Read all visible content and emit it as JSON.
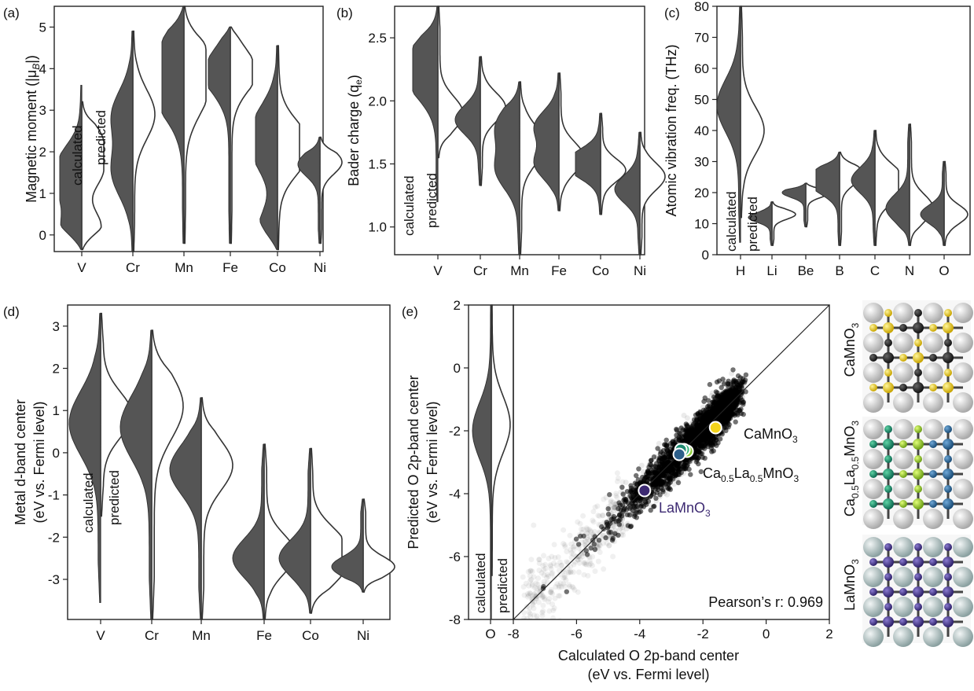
{
  "panels": {
    "a": {
      "label": "(a)",
      "ylabel": "Magnetic moment (|μ",
      "ylabel_sub": "B",
      "ylabel_tail": "|)",
      "ylim": [
        -0.4,
        5.5
      ],
      "yticks": [
        "0",
        "1",
        "2",
        "3",
        "4",
        "5"
      ],
      "ytick_values": [
        0,
        1,
        2,
        3,
        4,
        5
      ],
      "categories": [
        "V",
        "Cr",
        "Mn",
        "Fe",
        "Co",
        "Ni"
      ],
      "calc_label": "calculated",
      "pred_label": "predicted"
    },
    "b": {
      "label": "(b)",
      "ylabel": "Bader charge (q",
      "ylabel_sub": "e",
      "ylabel_tail": ")",
      "ylim": [
        0.78,
        2.75
      ],
      "yticks": [
        "1.0",
        "1.5",
        "2.0",
        "2.5"
      ],
      "ytick_values": [
        1.0,
        1.5,
        2.0,
        2.5
      ],
      "categories": [
        "V",
        "Cr",
        "Mn",
        "Fe",
        "Co",
        "Ni"
      ],
      "calc_label": "calculated",
      "pred_label": "predicted"
    },
    "c": {
      "label": "(c)",
      "ylabel": "Atomic vibration freq. (THz)",
      "ylim": [
        0,
        80
      ],
      "yticks": [
        "0",
        "10",
        "20",
        "30",
        "40",
        "50",
        "60",
        "70",
        "80"
      ],
      "ytick_values": [
        0,
        10,
        20,
        30,
        40,
        50,
        60,
        70,
        80
      ],
      "categories": [
        "H",
        "Li",
        "Be",
        "B",
        "C",
        "N",
        "O"
      ],
      "calc_label": "calculated",
      "pred_label": "predicted"
    },
    "d": {
      "label": "(d)",
      "ylabel_line1": "Metal d-band center",
      "ylabel_line2": "(eV vs. Fermi level)",
      "ylim": [
        -3.95,
        3.5
      ],
      "yticks": [
        "3",
        "2",
        "1",
        "0",
        "-1",
        "-2",
        "-3"
      ],
      "ytick_values": [
        3,
        2,
        1,
        0,
        -1,
        -2,
        -3
      ],
      "categories": [
        "V",
        "Cr",
        "Mn",
        "Fe",
        "Co",
        "Ni"
      ],
      "calc_label": "calculated",
      "pred_label": "predicted"
    },
    "e": {
      "label": "(e)",
      "ylabel_line1": "Predicted O 2p-band center",
      "ylabel_line2": "(eV vs. Fermi level)",
      "xlabel_line1": "Calculated O 2p-band center",
      "xlabel_line2": "(eV vs. Fermi level)",
      "ylim": [
        -8,
        2
      ],
      "xlim": [
        -8,
        2
      ],
      "yticks": [
        "2",
        "0",
        "-2",
        "-4",
        "-6",
        "-8"
      ],
      "ytick_values": [
        2,
        0,
        -2,
        -4,
        -6,
        -8
      ],
      "xticks": [
        "-8",
        "-6",
        "-4",
        "-2",
        "0",
        "2"
      ],
      "xtick_values": [
        -8,
        -6,
        -4,
        -2,
        0,
        2
      ],
      "violin_category": "O",
      "calc_label": "calculated",
      "pred_label": "predicted",
      "pearson": "Pearson’s r: 0.969",
      "annotations": {
        "camno3": "CaMnO",
        "camno3_sub": "3",
        "cala_a": "Ca",
        "cala_a_sub": "0.5",
        "cala_b": "La",
        "cala_b_sub": "0.5",
        "cala_c": "MnO",
        "cala_c_sub": "3",
        "lamno3": "LaMnO",
        "lamno3_sub": "3"
      },
      "structure_labels": {
        "camno3": "CaMnO",
        "camno3_sub": "3",
        "cala_a": "Ca",
        "cala_a_sub": "0.5",
        "cala_b": "La",
        "cala_b_sub": "0.5",
        "cala_c": "MnO",
        "cala_c_sub": "3",
        "lamno3": "LaMnO",
        "lamno3_sub": "3"
      }
    }
  },
  "colors": {
    "calc_fill": "#555555",
    "pred_fill": "#ffffff",
    "scatter": "#000000",
    "camno3": "#f2d31b",
    "lamno3": "#3d2a72",
    "mixed": [
      "#2d5f8a",
      "#1f8a70",
      "#34b37a",
      "#8fcf3c"
    ]
  },
  "chart_data": [
    {
      "type": "violin",
      "panel": "a",
      "ylabel": "Magnetic moment (|μB|)",
      "categories": [
        "V",
        "Cr",
        "Mn",
        "Fe",
        "Co",
        "Ni"
      ],
      "ylim": [
        -0.4,
        5.5
      ],
      "series": [
        {
          "name": "calculated",
          "ranges": [
            [
              -0.35,
              3.6
            ],
            [
              -0.4,
              4.9
            ],
            [
              -0.2,
              5.5
            ],
            [
              -0.2,
              5.0
            ],
            [
              -0.35,
              4.55
            ],
            [
              -0.2,
              2.35
            ]
          ],
          "modes": [
            [
              0.1,
              1.1,
              1.8
            ],
            [
              1.5,
              2.9
            ],
            [
              3.3,
              3.9,
              4.6
            ],
            [
              3.9,
              4.4
            ],
            [
              0.1,
              1.9,
              2.7
            ],
            [
              1.7
            ]
          ]
        },
        {
          "name": "predicted",
          "ranges": [
            [
              -0.35,
              3.2
            ],
            [
              -0.4,
              4.9
            ],
            [
              -0.2,
              5.5
            ],
            [
              -0.2,
              5.0
            ],
            [
              -0.35,
              4.55
            ],
            [
              -0.2,
              2.35
            ]
          ],
          "modes": [
            [
              0.2,
              1.5,
              2.3
            ],
            [
              2.9
            ],
            [
              3.4,
              4.3
            ],
            [
              4.0,
              4.4
            ],
            [
              1.9,
              2.3
            ],
            [
              1.75
            ]
          ]
        }
      ]
    },
    {
      "type": "violin",
      "panel": "b",
      "ylabel": "Bader charge (qe)",
      "categories": [
        "V",
        "Cr",
        "Mn",
        "Fe",
        "Co",
        "Ni"
      ],
      "ylim": [
        0.78,
        2.75
      ],
      "series": [
        {
          "name": "calculated",
          "ranges": [
            [
              1.2,
              2.75
            ],
            [
              1.33,
              2.35
            ],
            [
              0.78,
              2.15
            ],
            [
              1.13,
              2.22
            ],
            [
              1.1,
              1.9
            ],
            [
              0.78,
              1.75
            ]
          ],
          "modes": [
            [
              2.15,
              2.35
            ],
            [
              1.85
            ],
            [
              1.45,
              1.8
            ],
            [
              1.5,
              1.8
            ],
            [
              1.45,
              1.55
            ],
            [
              1.3
            ]
          ]
        },
        {
          "name": "predicted",
          "ranges": [
            [
              1.55,
              2.75
            ],
            [
              1.33,
              2.35
            ],
            [
              0.78,
              2.15
            ],
            [
              1.13,
              2.22
            ],
            [
              1.1,
              1.9
            ],
            [
              0.78,
              1.75
            ]
          ],
          "modes": [
            [
              1.9
            ],
            [
              1.95
            ],
            [
              1.65
            ],
            [
              1.55
            ],
            [
              1.45
            ],
            [
              1.4
            ]
          ]
        }
      ]
    },
    {
      "type": "violin",
      "panel": "c",
      "ylabel": "Atomic vibration freq. (THz)",
      "categories": [
        "H",
        "Li",
        "Be",
        "B",
        "C",
        "N",
        "O"
      ],
      "ylim": [
        0,
        80
      ],
      "series": [
        {
          "name": "calculated",
          "ranges": [
            [
              4,
              80
            ],
            [
              3,
              17
            ],
            [
              9,
              23
            ],
            [
              3,
              33
            ],
            [
              3,
              40
            ],
            [
              3,
              42
            ],
            [
              3,
              30
            ]
          ],
          "modes": [
            [
              48
            ],
            [
              12
            ],
            [
              20
            ],
            [
              22,
              26
            ],
            [
              24
            ],
            [
              15
            ],
            [
              13
            ]
          ]
        },
        {
          "name": "predicted",
          "ranges": [
            [
              12,
              80
            ],
            [
              3,
              17
            ],
            [
              9,
              23
            ],
            [
              3,
              33
            ],
            [
              3,
              40
            ],
            [
              3,
              42
            ],
            [
              3,
              30
            ]
          ],
          "modes": [
            [
              40
            ],
            [
              13
            ],
            [
              20
            ],
            [
              26
            ],
            [
              26,
              20
            ],
            [
              15
            ],
            [
              13
            ]
          ]
        }
      ]
    },
    {
      "type": "violin",
      "panel": "d",
      "ylabel": "Metal d-band center (eV vs. Fermi level)",
      "categories": [
        "V",
        "Cr",
        "Mn",
        "Fe",
        "Co",
        "Ni"
      ],
      "ylim": [
        -3.95,
        3.5
      ],
      "series": [
        {
          "name": "calculated",
          "ranges": [
            [
              -3.55,
              3.3
            ],
            [
              -3.95,
              2.9
            ],
            [
              -3.95,
              1.3
            ],
            [
              -3.95,
              0.2
            ],
            [
              -3.8,
              0.1
            ],
            [
              -3.3,
              -1.1
            ]
          ],
          "modes": [
            [
              0.7
            ],
            [
              0.6
            ],
            [
              -0.4
            ],
            [
              -2.5
            ],
            [
              -2.5
            ],
            [
              -2.7
            ]
          ]
        },
        {
          "name": "predicted",
          "ranges": [
            [
              -1.5,
              3.3
            ],
            [
              -3.95,
              2.9
            ],
            [
              -3.95,
              1.3
            ],
            [
              -3.95,
              0.2
            ],
            [
              -3.8,
              0.1
            ],
            [
              -3.3,
              -1.1
            ]
          ],
          "modes": [
            [
              0.9
            ],
            [
              1.1
            ],
            [
              -0.3
            ],
            [
              -2.4
            ],
            [
              -2.1,
              -2.8
            ],
            [
              -2.7
            ]
          ]
        }
      ]
    },
    {
      "type": "scatter",
      "panel": "e",
      "title": "",
      "xlabel": "Calculated O 2p-band center (eV vs. Fermi level)",
      "ylabel": "Predicted O 2p-band center (eV vs. Fermi level)",
      "xlim": [
        -8,
        2
      ],
      "ylim": [
        -8,
        2
      ],
      "pearson_r": 0.969,
      "diagonal": true,
      "highlighted": [
        {
          "label": "CaMnO3",
          "x": -1.6,
          "y": -1.9,
          "color": "#f2d31b"
        },
        {
          "x": -2.5,
          "y": -2.65,
          "color": "#8fcf3c"
        },
        {
          "x": -2.6,
          "y": -2.6,
          "color": "#34b37a"
        },
        {
          "x": -2.7,
          "y": -2.6,
          "color": "#1f8a70"
        },
        {
          "x": -2.75,
          "y": -2.75,
          "color": "#2d5f8a"
        },
        {
          "label": "LaMnO3",
          "x": -3.85,
          "y": -3.9,
          "color": "#3d2a72"
        }
      ],
      "violin": {
        "category": "O",
        "calc_range": [
          -8,
          2
        ],
        "pred_range": [
          -6.6,
          2
        ],
        "calc_mode": -2.0,
        "pred_mode": -1.8
      }
    }
  ]
}
